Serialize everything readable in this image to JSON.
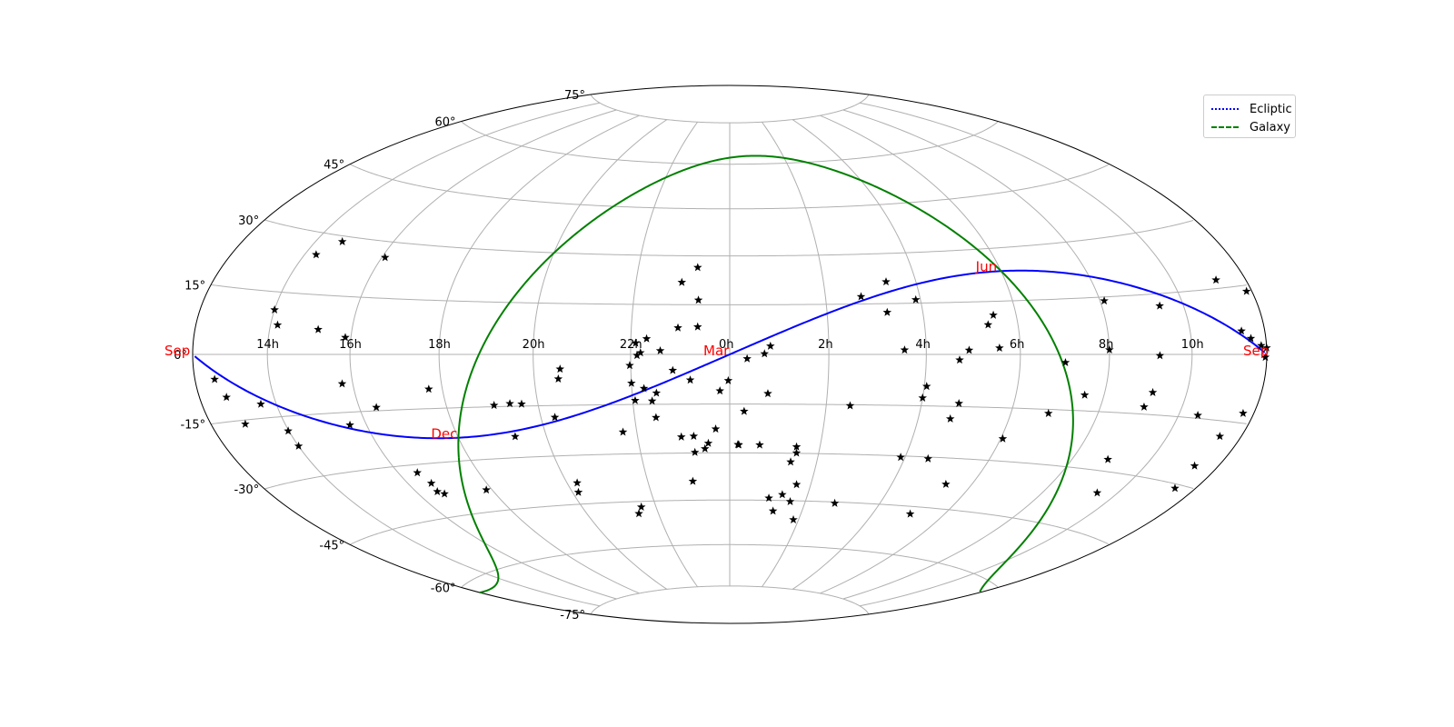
{
  "projection": "Hammer-Aitoff (equal-area), right ascension increasing to the right",
  "colors": {
    "ecliptic": "#0000ff",
    "galaxy": "#008000",
    "season_labels": "#ff0000",
    "stars": "#000000",
    "grid": "#b0b0b0"
  },
  "grid": {
    "visible": true,
    "ra_hours_labels": [
      "14h",
      "16h",
      "18h",
      "20h",
      "22h",
      "0h",
      "2h",
      "4h",
      "6h",
      "8h",
      "10h"
    ],
    "dec_labels": [
      "75°",
      "60°",
      "45°",
      "30°",
      "15°",
      "0°",
      "-15°",
      "-30°",
      "-45°",
      "-60°",
      "-75°"
    ]
  },
  "legend": {
    "placement": "top-right",
    "items": [
      {
        "label": "Ecliptic",
        "color": "#0000ff",
        "style": "dotted"
      },
      {
        "label": "Galaxy",
        "color": "#008000",
        "style": "dashed"
      }
    ]
  },
  "chart_data": {
    "type": "scatter",
    "x_unit": "right ascension (hours)",
    "y_unit": "declination (degrees)",
    "season_labels": [
      {
        "text": "Sep",
        "ra": 12.0,
        "dec": 0.0
      },
      {
        "text": "Dec",
        "ra": 18.0,
        "dec": -23.4
      },
      {
        "text": "Mar",
        "ra": 0.0,
        "dec": 0.0
      },
      {
        "text": "Jun",
        "ra": 6.0,
        "dec": 23.4
      },
      {
        "text": "Sep",
        "ra": 12.0,
        "dec": 0.0
      }
    ],
    "series": [
      {
        "name": "Ecliptic",
        "line": "ecliptic (obliquity 23.44°)"
      },
      {
        "name": "Galaxy",
        "line": "galactic equator (pole RA 12.857h, Dec 27.13°)"
      },
      {
        "name": "stars",
        "points": [
          [
            12.0,
            1.4
          ],
          [
            11.96,
            -0.6
          ],
          [
            11.85,
            1.9
          ],
          [
            11.58,
            3.5
          ],
          [
            11.35,
            5.2
          ],
          [
            11.17,
            16.9
          ],
          [
            11.85,
            13.7
          ],
          [
            11.7,
            -12.9
          ],
          [
            11.4,
            -18.4
          ],
          [
            11.33,
            -25.5
          ],
          [
            11.42,
            -30.9
          ],
          [
            10.5,
            -14.3
          ],
          [
            9.45,
            -35.4
          ],
          [
            8.0,
            1.2
          ],
          [
            8.1,
            14.0
          ],
          [
            9.4,
            12.0
          ],
          [
            9.2,
            -0.3
          ],
          [
            9.15,
            -9.5
          ],
          [
            9.05,
            -13.2
          ],
          [
            8.9,
            -27.0
          ],
          [
            7.0,
            -2.2
          ],
          [
            7.55,
            -10.8
          ],
          [
            6.85,
            -16.1
          ],
          [
            6.05,
            -23.7
          ],
          [
            5.35,
            -37.7
          ],
          [
            5.05,
            -47.3
          ],
          [
            5.35,
            8.4
          ],
          [
            5.5,
            11.1
          ],
          [
            5.55,
            1.8
          ],
          [
            4.9,
            1.2
          ],
          [
            4.7,
            -1.6
          ],
          [
            4.8,
            -14.1
          ],
          [
            4.7,
            -18.6
          ],
          [
            4.55,
            -30.5
          ],
          [
            4.05,
            -9.3
          ],
          [
            4.0,
            -12.7
          ],
          [
            3.9,
            -30.4
          ],
          [
            3.55,
            1.3
          ],
          [
            3.25,
            12.4
          ],
          [
            3.35,
            21.5
          ],
          [
            3.9,
            16.0
          ],
          [
            2.8,
            -45.4
          ],
          [
            1.85,
            -51.2
          ],
          [
            1.6,
            -45.3
          ],
          [
            1.35,
            -43.1
          ],
          [
            2.75,
            17.2
          ],
          [
            2.5,
            -15.3
          ],
          [
            1.48,
            -28.0
          ],
          [
            1.5,
            -29.9
          ],
          [
            1.4,
            -32.7
          ],
          [
            1.65,
            -39.8
          ],
          [
            1.2,
            -48.5
          ],
          [
            0.78,
            -11.8
          ],
          [
            0.82,
            2.5
          ],
          [
            0.7,
            0.2
          ],
          [
            0.66,
            -27.5
          ],
          [
            1.02,
            -44.3
          ],
          [
            0.35,
            -1.3
          ],
          [
            0.3,
            -17.2
          ],
          [
            0.2,
            -27.5
          ],
          [
            0.18,
            -27.4
          ],
          [
            23.97,
            -7.9
          ],
          [
            23.8,
            -11.0
          ],
          [
            23.7,
            -22.6
          ],
          [
            23.53,
            -27.0
          ],
          [
            23.45,
            -28.7
          ],
          [
            23.22,
            -24.8
          ],
          [
            23.22,
            -29.8
          ],
          [
            22.95,
            -25.0
          ],
          [
            23.1,
            -38.9
          ],
          [
            23.35,
            8.3
          ],
          [
            23.35,
            16.4
          ],
          [
            23.2,
            -7.7
          ],
          [
            22.98,
            21.8
          ],
          [
            23.3,
            26.4
          ],
          [
            22.95,
            8.0
          ],
          [
            22.85,
            -4.8
          ],
          [
            22.4,
            -14.0
          ],
          [
            22.5,
            -11.6
          ],
          [
            22.25,
            -10.2
          ],
          [
            22.45,
            -19.0
          ],
          [
            22.6,
            1.1
          ],
          [
            22.32,
            4.7
          ],
          [
            22.2,
            0.5
          ],
          [
            22.13,
            -0.3
          ],
          [
            22.1,
            3.4
          ],
          [
            22.0,
            -8.6
          ],
          [
            22.05,
            -13.8
          ],
          [
            21.98,
            -3.3
          ],
          [
            21.7,
            -23.3
          ],
          [
            21.6,
            -46.8
          ],
          [
            21.45,
            -48.9
          ],
          [
            20.55,
            -4.3
          ],
          [
            20.5,
            -7.2
          ],
          [
            20.3,
            -18.5
          ],
          [
            20.25,
            -38.4
          ],
          [
            20.15,
            -41.3
          ],
          [
            19.65,
            -14.4
          ],
          [
            19.4,
            -14.2
          ],
          [
            19.3,
            -23.8
          ],
          [
            19.05,
            -14.6
          ],
          [
            17.7,
            -9.6
          ],
          [
            17.85,
            -38.7
          ],
          [
            16.4,
            -14.1
          ],
          [
            15.75,
            -7.6
          ],
          [
            15.87,
            4.4
          ],
          [
            15.6,
            -18.3
          ],
          [
            16.48,
            -32.2
          ],
          [
            16.6,
            -35.4
          ],
          [
            16.55,
            -37.8
          ],
          [
            16.68,
            -38.6
          ],
          [
            16.08,
            25.8
          ],
          [
            14.7,
            28.6
          ],
          [
            14.3,
            24.7
          ],
          [
            14.0,
            10.7
          ],
          [
            14.18,
            7.1
          ],
          [
            13.6,
            -11.7
          ],
          [
            13.98,
            -18.5
          ],
          [
            14.0,
            -22.3
          ],
          [
            12.55,
            -5.5
          ],
          [
            12.75,
            -9.6
          ],
          [
            12.95,
            -15.9
          ],
          [
            15.2,
            6.3
          ]
        ]
      }
    ]
  }
}
